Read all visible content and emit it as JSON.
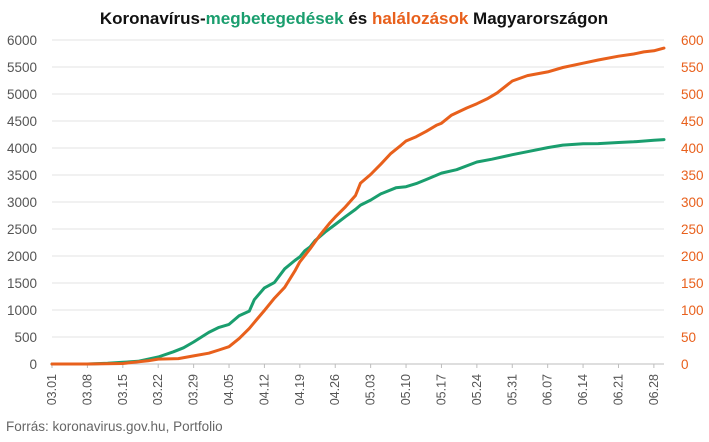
{
  "chart_data": {
    "type": "line",
    "title_parts": [
      {
        "text": "Koronavírus-",
        "color": "#111111"
      },
      {
        "text": "megbetegedések",
        "color": "#1a9e6e"
      },
      {
        "text": " és ",
        "color": "#111111"
      },
      {
        "text": "halálozások",
        "color": "#e8601c"
      },
      {
        "text": " Magyarországon",
        "color": "#111111"
      }
    ],
    "source": "Forrás: koronavirus.gov.hu, Portfolio",
    "grid": true,
    "y_left": {
      "min": 0,
      "max": 6000,
      "step": 500,
      "color": "#555555"
    },
    "y_right": {
      "min": 0,
      "max": 600,
      "step": 50,
      "color": "#e8601c"
    },
    "x": {
      "start": "03.01",
      "end": "06.30",
      "tick_labels": [
        "03.01",
        "03.08",
        "03.15",
        "03.22",
        "03.29",
        "04.05",
        "04.12",
        "04.19",
        "04.26",
        "05.03",
        "05.10",
        "05.17",
        "05.24",
        "05.31",
        "06.07",
        "06.14",
        "06.21",
        "06.28"
      ]
    },
    "series": [
      {
        "axis": "left",
        "color": "#1a9e6e",
        "points": [
          [
            "03.01",
            0
          ],
          [
            "03.04",
            0
          ],
          [
            "03.08",
            0
          ],
          [
            "03.12",
            13
          ],
          [
            "03.15",
            32
          ],
          [
            "03.18",
            50
          ],
          [
            "03.22",
            130
          ],
          [
            "03.25",
            226
          ],
          [
            "03.27",
            300
          ],
          [
            "03.29",
            408
          ],
          [
            "04.01",
            585
          ],
          [
            "04.03",
            678
          ],
          [
            "04.05",
            733
          ],
          [
            "04.07",
            895
          ],
          [
            "04.09",
            980
          ],
          [
            "04.10",
            1190
          ],
          [
            "04.12",
            1410
          ],
          [
            "04.14",
            1512
          ],
          [
            "04.16",
            1763
          ],
          [
            "04.18",
            1916
          ],
          [
            "04.19",
            1984
          ],
          [
            "04.20",
            2098
          ],
          [
            "04.21",
            2168
          ],
          [
            "04.22",
            2284
          ],
          [
            "04.24",
            2443
          ],
          [
            "04.26",
            2583
          ],
          [
            "04.28",
            2727
          ],
          [
            "04.30",
            2863
          ],
          [
            "05.01",
            2942
          ],
          [
            "05.03",
            3035
          ],
          [
            "05.05",
            3150
          ],
          [
            "05.08",
            3263
          ],
          [
            "05.10",
            3284
          ],
          [
            "05.12",
            3341
          ],
          [
            "05.14",
            3417
          ],
          [
            "05.17",
            3535
          ],
          [
            "05.20",
            3598
          ],
          [
            "05.24",
            3741
          ],
          [
            "05.27",
            3793
          ],
          [
            "05.31",
            3876
          ],
          [
            "06.03",
            3931
          ],
          [
            "06.07",
            4008
          ],
          [
            "06.10",
            4053
          ],
          [
            "06.14",
            4078
          ],
          [
            "06.17",
            4081
          ],
          [
            "06.21",
            4102
          ],
          [
            "06.24",
            4114
          ],
          [
            "06.28",
            4145
          ],
          [
            "06.30",
            4155
          ]
        ]
      },
      {
        "axis": "right",
        "color": "#e8601c",
        "points": [
          [
            "03.01",
            0
          ],
          [
            "03.08",
            0
          ],
          [
            "03.15",
            1
          ],
          [
            "03.20",
            6
          ],
          [
            "03.22",
            9
          ],
          [
            "03.26",
            10
          ],
          [
            "03.29",
            15
          ],
          [
            "04.01",
            20
          ],
          [
            "04.03",
            26
          ],
          [
            "04.05",
            32
          ],
          [
            "04.07",
            47
          ],
          [
            "04.09",
            66
          ],
          [
            "04.10",
            77
          ],
          [
            "04.12",
            99
          ],
          [
            "04.14",
            122
          ],
          [
            "04.16",
            142
          ],
          [
            "04.18",
            172
          ],
          [
            "04.19",
            189
          ],
          [
            "04.21",
            213
          ],
          [
            "04.23",
            239
          ],
          [
            "04.25",
            262
          ],
          [
            "04.26",
            272
          ],
          [
            "04.28",
            291
          ],
          [
            "04.30",
            312
          ],
          [
            "05.01",
            335
          ],
          [
            "05.03",
            351
          ],
          [
            "05.05",
            370
          ],
          [
            "05.07",
            390
          ],
          [
            "05.09",
            405
          ],
          [
            "05.10",
            413
          ],
          [
            "05.12",
            421
          ],
          [
            "05.14",
            431
          ],
          [
            "05.16",
            442
          ],
          [
            "05.17",
            446
          ],
          [
            "05.19",
            461
          ],
          [
            "05.22",
            474
          ],
          [
            "05.24",
            482
          ],
          [
            "05.26",
            491
          ],
          [
            "05.28",
            502
          ],
          [
            "05.31",
            524
          ],
          [
            "06.03",
            534
          ],
          [
            "06.07",
            541
          ],
          [
            "06.10",
            549
          ],
          [
            "06.14",
            557
          ],
          [
            "06.17",
            563
          ],
          [
            "06.21",
            570
          ],
          [
            "06.24",
            574
          ],
          [
            "06.26",
            578
          ],
          [
            "06.28",
            580
          ],
          [
            "06.30",
            585
          ]
        ]
      }
    ]
  }
}
